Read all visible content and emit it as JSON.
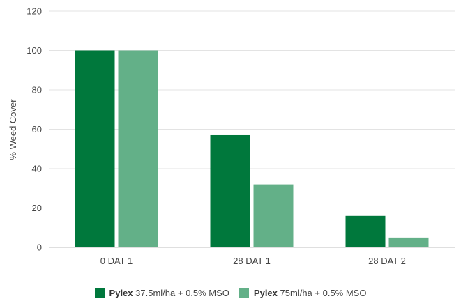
{
  "chart_data": {
    "type": "bar",
    "title": "",
    "xlabel": "",
    "ylabel": "% Weed Cover",
    "ylim": [
      0,
      120
    ],
    "yticks": [
      0,
      20,
      40,
      60,
      80,
      100,
      120
    ],
    "grid": true,
    "legend_position": "bottom",
    "categories": [
      "0 DAT 1",
      "28 DAT 1",
      "28 DAT 2"
    ],
    "series": [
      {
        "name_bold": "Pylex",
        "name_rest": "37.5ml/ha + 0.5% MSO",
        "color": "#00783c",
        "values": [
          100,
          57,
          16
        ]
      },
      {
        "name_bold": "Pylex",
        "name_rest": "75ml/ha + 0.5% MSO",
        "color": "#63b088",
        "values": [
          100,
          32,
          5
        ]
      }
    ]
  }
}
